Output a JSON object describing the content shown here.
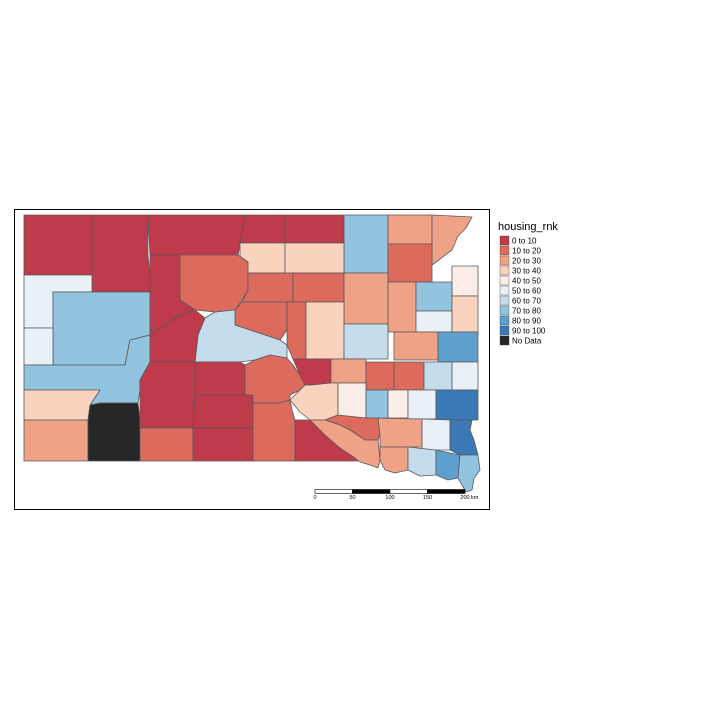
{
  "legend": {
    "title": "housing_rnk",
    "classes": [
      {
        "label": "0 to 10",
        "color": "#bf3a4a"
      },
      {
        "label": "10 to 20",
        "color": "#dc6b5e"
      },
      {
        "label": "20 to 30",
        "color": "#f0a286"
      },
      {
        "label": "30 to 40",
        "color": "#f9d3bd"
      },
      {
        "label": "40 to 50",
        "color": "#fbeee8"
      },
      {
        "label": "50 to 60",
        "color": "#e9f1f7"
      },
      {
        "label": "60 to 70",
        "color": "#c4dcec"
      },
      {
        "label": "70 to 80",
        "color": "#92c3df"
      },
      {
        "label": "80 to 90",
        "color": "#5d9fcd"
      },
      {
        "label": "90 to 100",
        "color": "#3a78b6"
      },
      {
        "label": "No Data",
        "color": "#262626"
      }
    ]
  },
  "scale_bar": {
    "ticks": [
      "0",
      "50",
      "100",
      "150",
      "200"
    ],
    "unit": "km"
  }
}
